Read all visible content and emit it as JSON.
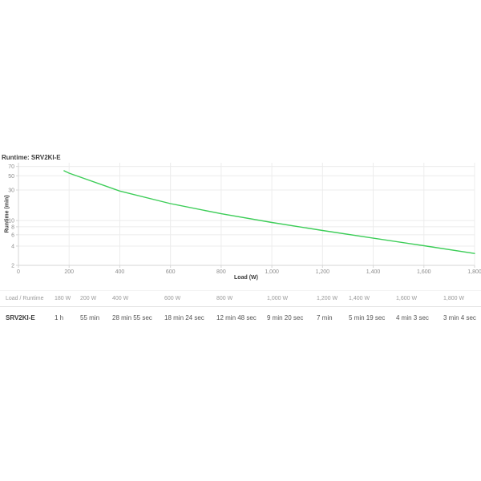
{
  "page": {
    "background_color": "#ffffff"
  },
  "chart_data": {
    "type": "line",
    "title": "Runtime: SRV2KI-E",
    "xlabel": "Load (W)",
    "ylabel": "Runtime (min)",
    "x_scale": "linear",
    "y_scale": "log",
    "xlim": [
      0,
      1800
    ],
    "ylim": [
      2,
      80
    ],
    "grid": true,
    "legend": "none",
    "x_ticks": [
      0,
      200,
      400,
      600,
      800,
      1000,
      1200,
      1400,
      1600,
      1800
    ],
    "x_tick_labels": [
      "0",
      "200",
      "400",
      "600",
      "800",
      "1,000",
      "1,200",
      "1,400",
      "1,600",
      "1,800"
    ],
    "y_ticks": [
      70,
      50,
      30,
      10,
      8,
      6,
      4,
      2
    ],
    "grid_color": "#ececec",
    "axis_color": "#d6d6d6",
    "series": [
      {
        "name": "SRV2KI-E",
        "color": "#3dcd58",
        "points": [
          {
            "load": 180,
            "runtime_min": 60,
            "label": "1 h"
          },
          {
            "load": 200,
            "runtime_min": 55,
            "label": "55 min"
          },
          {
            "load": 400,
            "runtime_min": 28.917,
            "label": "28 min 55 sec"
          },
          {
            "load": 600,
            "runtime_min": 18.4,
            "label": "18 min 24 sec"
          },
          {
            "load": 800,
            "runtime_min": 12.8,
            "label": "12 min 48 sec"
          },
          {
            "load": 1000,
            "runtime_min": 9.333,
            "label": "9 min 20 sec"
          },
          {
            "load": 1200,
            "runtime_min": 7,
            "label": "7 min"
          },
          {
            "load": 1400,
            "runtime_min": 5.317,
            "label": "5 min 19 sec"
          },
          {
            "load": 1600,
            "runtime_min": 4.05,
            "label": "4 min 3 sec"
          },
          {
            "load": 1800,
            "runtime_min": 3.067,
            "label": "3 min 4 sec"
          }
        ]
      }
    ]
  },
  "table": {
    "header": [
      "Load / Runtime",
      "180 W",
      "200 W",
      "400 W",
      "600 W",
      "800 W",
      "1,000 W",
      "1,200 W",
      "1,400 W",
      "1,600 W",
      "1,800 W"
    ],
    "rows": [
      {
        "model": "SRV2KI-E",
        "values": [
          "1 h",
          "55 min",
          "28 min 55 sec",
          "18 min 24 sec",
          "12 min 48 sec",
          "9 min 20 sec",
          "7 min",
          "5 min 19 sec",
          "4 min 3 sec",
          "3 min 4 sec"
        ]
      }
    ]
  }
}
